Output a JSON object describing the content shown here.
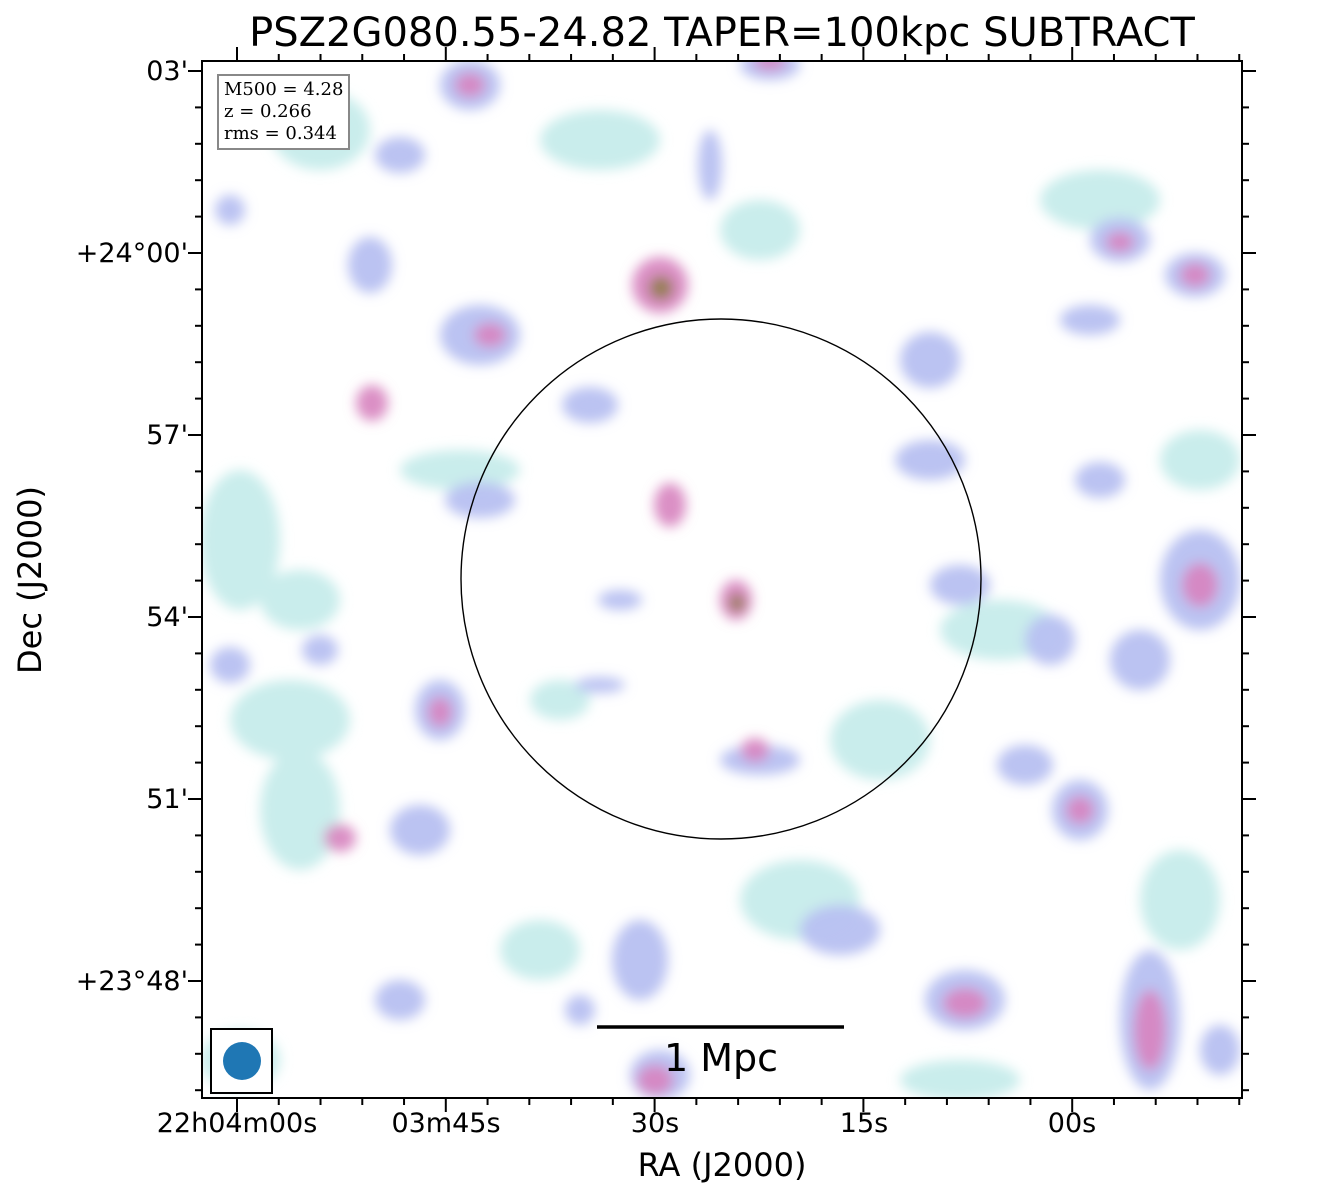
{
  "title": "PSZ2G080.55-24.82 TAPER=100kpc SUBTRACT",
  "axes": {
    "xlabel": "RA (J2000)",
    "ylabel": "Dec (J2000)",
    "xticks": [
      "22h04m00s",
      "03m45s",
      "30s",
      "15s",
      "00s"
    ],
    "yticks": [
      "03'",
      "+24°00'",
      "57'",
      "54'",
      "51'",
      "+23°48'"
    ]
  },
  "info": {
    "m500": "M500 = 4.28",
    "z": "z = 0.266",
    "rms": "rms = 0.344"
  },
  "scalebar": {
    "label": "1 Mpc"
  },
  "colors": {
    "beam": "#1f77b4",
    "emission_low": "#bfe8e8",
    "emission_mid": "#b4bef0",
    "emission_high": "#d27cba",
    "emission_peak": "#7a7a3a"
  }
}
